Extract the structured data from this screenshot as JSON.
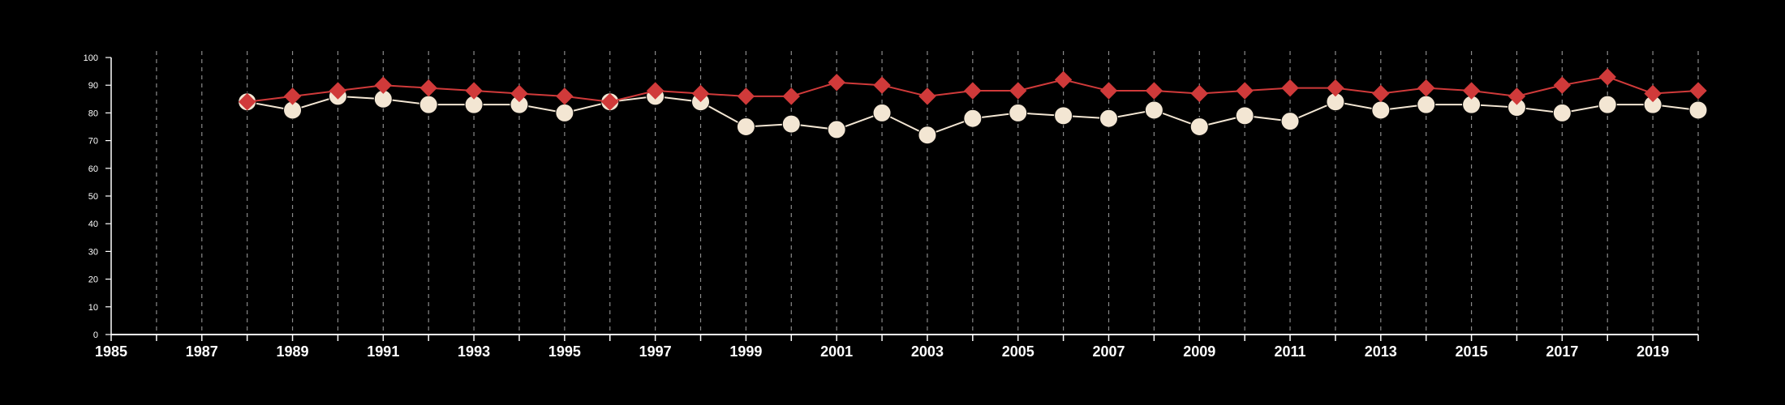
{
  "colors": {
    "background": "#000000",
    "axis": "#ffffff",
    "grid": "#8a8a8a",
    "series_a": "#d03a3a",
    "series_b": "#f3e6d3"
  },
  "chart_data": {
    "type": "line",
    "title": "",
    "xlabel": "",
    "ylabel": "",
    "xlim": [
      1985,
      2020
    ],
    "ylim": [
      0,
      100
    ],
    "x_ticks": [
      1985,
      1987,
      1989,
      1991,
      1993,
      1995,
      1997,
      1999,
      2001,
      2003,
      2005,
      2007,
      2009,
      2011,
      2013,
      2015,
      2017,
      2019
    ],
    "y_ticks": [
      0,
      10,
      20,
      30,
      40,
      50,
      60,
      70,
      80,
      90,
      100
    ],
    "grid": "vertical dashed lines at every year",
    "legend": "none",
    "x": [
      1988,
      1989,
      1990,
      1991,
      1992,
      1993,
      1994,
      1995,
      1996,
      1997,
      1998,
      1999,
      2000,
      2001,
      2002,
      2003,
      2004,
      2005,
      2006,
      2007,
      2008,
      2009,
      2010,
      2011,
      2012,
      2013,
      2014,
      2015,
      2016,
      2017,
      2018,
      2019,
      2020
    ],
    "series": [
      {
        "marker": "circle",
        "color": "#f3e6d3",
        "values": [
          84,
          81,
          86,
          85,
          83,
          83,
          83,
          80,
          84,
          86,
          84,
          75,
          76,
          74,
          80,
          72,
          78,
          80,
          79,
          78,
          81,
          75,
          79,
          77,
          84,
          81,
          83,
          83,
          82,
          80,
          83,
          83,
          81
        ]
      },
      {
        "marker": "diamond",
        "color": "#d03a3a",
        "values": [
          84,
          86,
          88,
          90,
          89,
          88,
          87,
          86,
          84,
          88,
          87,
          86,
          86,
          91,
          90,
          86,
          88,
          88,
          92,
          88,
          88,
          87,
          88,
          89,
          89,
          87,
          89,
          88,
          86,
          90,
          93,
          87,
          88
        ]
      }
    ]
  }
}
